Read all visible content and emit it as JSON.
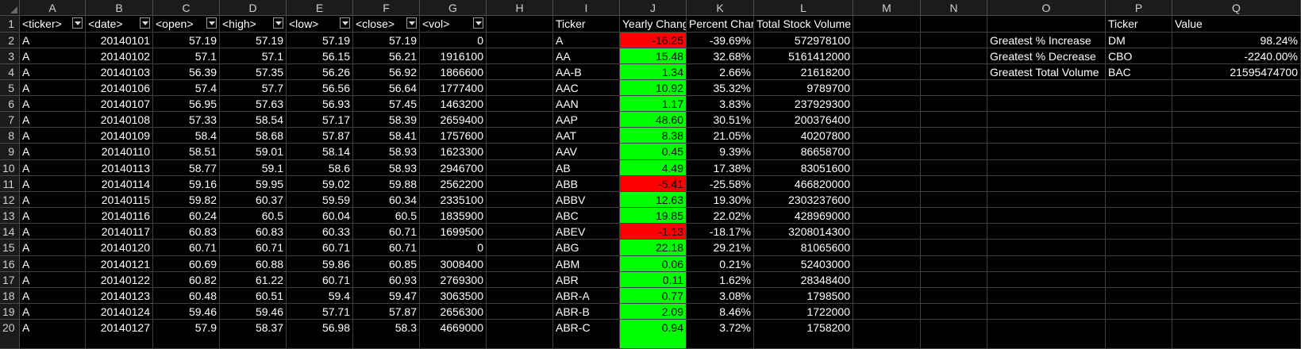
{
  "column_headers": [
    "A",
    "B",
    "C",
    "D",
    "E",
    "F",
    "G",
    "H",
    "I",
    "J",
    "K",
    "L",
    "M",
    "N",
    "O",
    "P",
    "Q"
  ],
  "row_numbers": [
    "1",
    "2",
    "3",
    "4",
    "5",
    "6",
    "7",
    "8",
    "9",
    "10",
    "11",
    "12",
    "13",
    "14",
    "15",
    "16",
    "17",
    "18",
    "19",
    "20"
  ],
  "raw_data": {
    "headers": [
      "<ticker>",
      "<date>",
      "<open>",
      "<high>",
      "<low>",
      "<close>",
      "<vol>"
    ],
    "rows": [
      [
        "A",
        "20140101",
        "57.19",
        "57.19",
        "57.19",
        "57.19",
        "0"
      ],
      [
        "A",
        "20140102",
        "57.1",
        "57.1",
        "56.15",
        "56.21",
        "1916100"
      ],
      [
        "A",
        "20140103",
        "56.39",
        "57.35",
        "56.26",
        "56.92",
        "1866600"
      ],
      [
        "A",
        "20140106",
        "57.4",
        "57.7",
        "56.56",
        "56.64",
        "1777400"
      ],
      [
        "A",
        "20140107",
        "56.95",
        "57.63",
        "56.93",
        "57.45",
        "1463200"
      ],
      [
        "A",
        "20140108",
        "57.33",
        "58.54",
        "57.17",
        "58.39",
        "2659400"
      ],
      [
        "A",
        "20140109",
        "58.4",
        "58.68",
        "57.87",
        "58.41",
        "1757600"
      ],
      [
        "A",
        "20140110",
        "58.51",
        "59.01",
        "58.14",
        "58.93",
        "1623300"
      ],
      [
        "A",
        "20140113",
        "58.77",
        "59.1",
        "58.6",
        "58.93",
        "2946700"
      ],
      [
        "A",
        "20140114",
        "59.16",
        "59.95",
        "59.02",
        "59.88",
        "2562200"
      ],
      [
        "A",
        "20140115",
        "59.82",
        "60.37",
        "59.59",
        "60.34",
        "2335100"
      ],
      [
        "A",
        "20140116",
        "60.24",
        "60.5",
        "60.04",
        "60.5",
        "1835900"
      ],
      [
        "A",
        "20140117",
        "60.83",
        "60.83",
        "60.33",
        "60.71",
        "1699500"
      ],
      [
        "A",
        "20140120",
        "60.71",
        "60.71",
        "60.71",
        "60.71",
        "0"
      ],
      [
        "A",
        "20140121",
        "60.69",
        "60.88",
        "59.86",
        "60.85",
        "3008400"
      ],
      [
        "A",
        "20140122",
        "60.82",
        "61.22",
        "60.71",
        "60.93",
        "2769300"
      ],
      [
        "A",
        "20140123",
        "60.48",
        "60.51",
        "59.4",
        "59.47",
        "3063500"
      ],
      [
        "A",
        "20140124",
        "59.46",
        "59.46",
        "57.71",
        "57.87",
        "2656300"
      ],
      [
        "A",
        "20140127",
        "57.9",
        "58.37",
        "56.98",
        "58.3",
        "4669000"
      ]
    ]
  },
  "summary": {
    "headers": [
      "Ticker",
      "Yearly Chang",
      "Percent Chan",
      "Total Stock Volume"
    ],
    "rows": [
      [
        "A",
        "-16.25",
        "-39.69%",
        "572978100"
      ],
      [
        "AA",
        "15.48",
        "32.68%",
        "5161412000"
      ],
      [
        "AA-B",
        "1.34",
        "2.66%",
        "21618200"
      ],
      [
        "AAC",
        "10.92",
        "35.32%",
        "9789700"
      ],
      [
        "AAN",
        "1.17",
        "3.83%",
        "237929300"
      ],
      [
        "AAP",
        "48.60",
        "30.51%",
        "200376400"
      ],
      [
        "AAT",
        "8.38",
        "21.05%",
        "40207800"
      ],
      [
        "AAV",
        "0.45",
        "9.39%",
        "86658700"
      ],
      [
        "AB",
        "4.49",
        "17.38%",
        "83051600"
      ],
      [
        "ABB",
        "-5.41",
        "-25.58%",
        "466820000"
      ],
      [
        "ABBV",
        "12.63",
        "19.30%",
        "2303237600"
      ],
      [
        "ABC",
        "19.85",
        "22.02%",
        "428969000"
      ],
      [
        "ABEV",
        "-1.13",
        "-18.17%",
        "3208014300"
      ],
      [
        "ABG",
        "22.18",
        "29.21%",
        "81065600"
      ],
      [
        "ABM",
        "0.06",
        "0.21%",
        "52403000"
      ],
      [
        "ABR",
        "0.11",
        "1.62%",
        "28348400"
      ],
      [
        "ABR-A",
        "0.77",
        "3.08%",
        "1798500"
      ],
      [
        "ABR-B",
        "2.09",
        "8.46%",
        "1722000"
      ],
      [
        "ABR-C",
        "0.94",
        "3.72%",
        "1758200"
      ]
    ]
  },
  "greatest": {
    "headers": [
      "Ticker",
      "Value"
    ],
    "rows": [
      [
        "Greatest % Increase",
        "DM",
        "98.24%"
      ],
      [
        "Greatest % Decrease",
        "CBO",
        "-2240.00%"
      ],
      [
        "Greatest Total Volume",
        "BAC",
        "21595474700"
      ]
    ]
  },
  "colors": {
    "positive_fill": "#00ff00",
    "negative_fill": "#ff0000",
    "background": "#000000",
    "gridline": "#3f3f3f"
  },
  "icons": {
    "filter_dropdown": "filter-dropdown-icon",
    "select_all_corner": "select-all-icon"
  }
}
